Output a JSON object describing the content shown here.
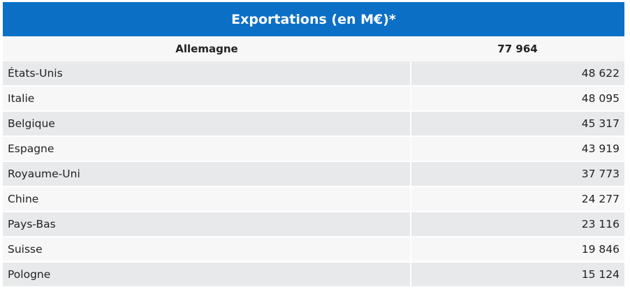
{
  "table": {
    "title": "Exportations (en M€)*",
    "header": {
      "country": "Allemagne",
      "value": "77 964"
    },
    "rows": [
      {
        "country": "États-Unis",
        "value": "48 622"
      },
      {
        "country": "Italie",
        "value": "48 095"
      },
      {
        "country": "Belgique",
        "value": "45 317"
      },
      {
        "country": "Espagne",
        "value": "43 919"
      },
      {
        "country": "Royaume-Uni",
        "value": "37 773"
      },
      {
        "country": "Chine",
        "value": "24 277"
      },
      {
        "country": "Pays-Bas",
        "value": "23 116"
      },
      {
        "country": "Suisse",
        "value": "19 846"
      },
      {
        "country": "Pologne",
        "value": "15 124"
      }
    ],
    "colors": {
      "title_bg": "#0c6fc6",
      "row_odd": "#e8e9eb",
      "row_even": "#f7f7f7"
    }
  }
}
